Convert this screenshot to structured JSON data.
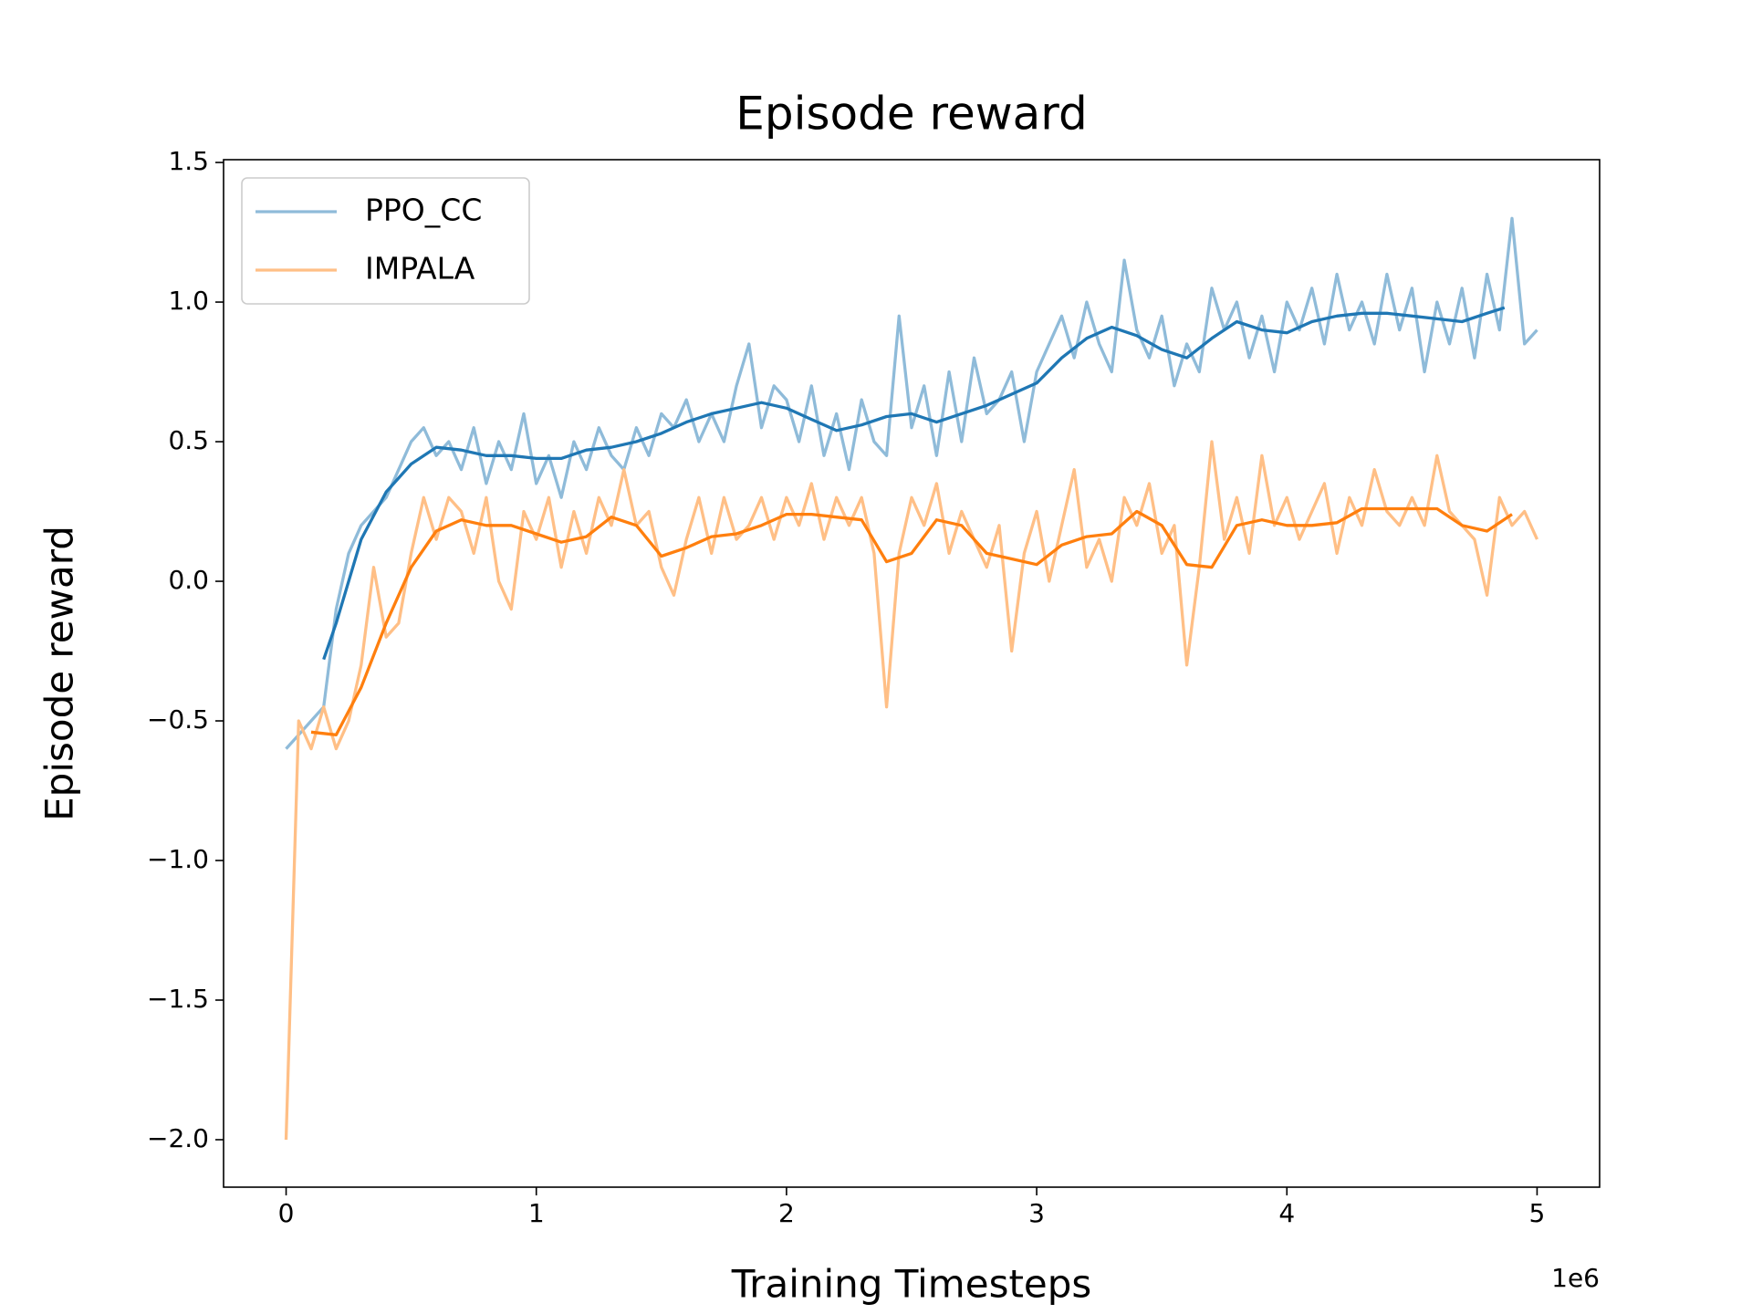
{
  "chart_data": {
    "type": "line",
    "title": "Episode reward",
    "xlabel": "Training Timesteps",
    "ylabel": "Episode reward",
    "x_offset_label": "1e6",
    "xlim": [
      -0.25,
      5.25
    ],
    "ylim": [
      -2.17,
      1.51
    ],
    "xticks": [
      0,
      1,
      2,
      3,
      4,
      5
    ],
    "yticks": [
      {
        "value": -2,
        "label": "−2.0"
      },
      {
        "value": -1.5,
        "label": "−1.5"
      },
      {
        "value": -1,
        "label": "−1.0"
      },
      {
        "value": -0.5,
        "label": "−0.5"
      },
      {
        "value": 0,
        "label": "0.0"
      },
      0.5,
      {
        "value": 1,
        "label": "1.0"
      },
      1.5
    ],
    "grid": false,
    "legend": "upper left",
    "series": [
      {
        "name": "PPO_CC",
        "color": "#8fbbd9",
        "x": [
          0,
          0.05,
          0.1,
          0.15,
          0.2,
          0.25,
          0.3,
          0.35,
          0.4,
          0.45,
          0.5,
          0.55,
          0.6,
          0.65,
          0.7,
          0.75,
          0.8,
          0.85,
          0.9,
          0.95,
          1,
          1.05,
          1.1,
          1.15,
          1.2,
          1.25,
          1.3,
          1.35,
          1.4,
          1.45,
          1.5,
          1.55,
          1.6,
          1.65,
          1.7,
          1.75,
          1.8,
          1.85,
          1.9,
          1.95,
          2,
          2.05,
          2.1,
          2.15,
          2.2,
          2.25,
          2.3,
          2.35,
          2.4,
          2.45,
          2.5,
          2.55,
          2.6,
          2.65,
          2.7,
          2.75,
          2.8,
          2.85,
          2.9,
          2.95,
          3,
          3.05,
          3.1,
          3.15,
          3.2,
          3.25,
          3.3,
          3.35,
          3.4,
          3.45,
          3.5,
          3.55,
          3.6,
          3.65,
          3.7,
          3.75,
          3.8,
          3.85,
          3.9,
          3.95,
          4,
          4.05,
          4.1,
          4.15,
          4.2,
          4.25,
          4.3,
          4.35,
          4.4,
          4.45,
          4.5,
          4.55,
          4.6,
          4.65,
          4.7,
          4.75,
          4.8,
          4.85,
          4.9,
          4.95,
          5
        ],
        "values": [
          -0.6,
          -0.55,
          -0.5,
          -0.45,
          -0.1,
          0.1,
          0.2,
          0.25,
          0.3,
          0.4,
          0.5,
          0.55,
          0.45,
          0.5,
          0.4,
          0.55,
          0.35,
          0.5,
          0.4,
          0.6,
          0.35,
          0.45,
          0.3,
          0.5,
          0.4,
          0.55,
          0.45,
          0.4,
          0.55,
          0.45,
          0.6,
          0.55,
          0.65,
          0.5,
          0.6,
          0.5,
          0.7,
          0.85,
          0.55,
          0.7,
          0.65,
          0.5,
          0.7,
          0.45,
          0.6,
          0.4,
          0.65,
          0.5,
          0.45,
          0.95,
          0.55,
          0.7,
          0.45,
          0.75,
          0.5,
          0.8,
          0.6,
          0.65,
          0.75,
          0.5,
          0.75,
          0.85,
          0.95,
          0.8,
          1.0,
          0.85,
          0.75,
          1.15,
          0.9,
          0.8,
          0.95,
          0.7,
          0.85,
          0.75,
          1.05,
          0.9,
          1.0,
          0.8,
          0.95,
          0.75,
          1.0,
          0.9,
          1.05,
          0.85,
          1.1,
          0.9,
          1.0,
          0.85,
          1.1,
          0.9,
          1.05,
          0.75,
          1.0,
          0.85,
          1.05,
          0.8,
          1.1,
          0.9,
          1.3,
          0.85,
          0.9
        ]
      },
      {
        "color": "#1f77b4",
        "x": [
          0.15,
          0.2,
          0.3,
          0.4,
          0.5,
          0.6,
          0.7,
          0.8,
          0.9,
          1,
          1.1,
          1.2,
          1.3,
          1.4,
          1.5,
          1.6,
          1.7,
          1.8,
          1.9,
          2,
          2.1,
          2.2,
          2.3,
          2.4,
          2.5,
          2.6,
          2.7,
          2.8,
          2.9,
          3,
          3.1,
          3.2,
          3.3,
          3.4,
          3.5,
          3.6,
          3.7,
          3.8,
          3.9,
          4,
          4.1,
          4.2,
          4.3,
          4.4,
          4.5,
          4.6,
          4.7,
          4.8,
          4.87
        ],
        "values": [
          -0.28,
          -0.15,
          0.15,
          0.32,
          0.42,
          0.48,
          0.47,
          0.45,
          0.45,
          0.44,
          0.44,
          0.47,
          0.48,
          0.5,
          0.53,
          0.57,
          0.6,
          0.62,
          0.64,
          0.62,
          0.58,
          0.54,
          0.56,
          0.59,
          0.6,
          0.57,
          0.6,
          0.63,
          0.67,
          0.71,
          0.8,
          0.87,
          0.91,
          0.88,
          0.83,
          0.8,
          0.87,
          0.93,
          0.9,
          0.89,
          0.93,
          0.95,
          0.96,
          0.96,
          0.95,
          0.94,
          0.93,
          0.96,
          0.98
        ]
      },
      {
        "name": "IMPALA",
        "color": "#ffbf86",
        "x": [
          0,
          0.05,
          0.1,
          0.15,
          0.2,
          0.25,
          0.3,
          0.35,
          0.4,
          0.45,
          0.5,
          0.55,
          0.6,
          0.65,
          0.7,
          0.75,
          0.8,
          0.85,
          0.9,
          0.95,
          1,
          1.05,
          1.1,
          1.15,
          1.2,
          1.25,
          1.3,
          1.35,
          1.4,
          1.45,
          1.5,
          1.55,
          1.6,
          1.65,
          1.7,
          1.75,
          1.8,
          1.85,
          1.9,
          1.95,
          2,
          2.05,
          2.1,
          2.15,
          2.2,
          2.25,
          2.3,
          2.35,
          2.4,
          2.45,
          2.5,
          2.55,
          2.6,
          2.65,
          2.7,
          2.75,
          2.8,
          2.85,
          2.9,
          2.95,
          3,
          3.05,
          3.1,
          3.15,
          3.2,
          3.25,
          3.3,
          3.35,
          3.4,
          3.45,
          3.5,
          3.55,
          3.6,
          3.65,
          3.7,
          3.75,
          3.8,
          3.85,
          3.9,
          3.95,
          4,
          4.05,
          4.1,
          4.15,
          4.2,
          4.25,
          4.3,
          4.35,
          4.4,
          4.45,
          4.5,
          4.55,
          4.6,
          4.65,
          4.7,
          4.75,
          4.8,
          4.85,
          4.9,
          4.95,
          5
        ],
        "values": [
          -2.0,
          -0.5,
          -0.6,
          -0.45,
          -0.6,
          -0.5,
          -0.3,
          0.05,
          -0.2,
          -0.15,
          0.1,
          0.3,
          0.15,
          0.3,
          0.25,
          0.1,
          0.3,
          0.0,
          -0.1,
          0.25,
          0.15,
          0.3,
          0.05,
          0.25,
          0.1,
          0.3,
          0.2,
          0.4,
          0.2,
          0.25,
          0.05,
          -0.05,
          0.15,
          0.3,
          0.1,
          0.3,
          0.15,
          0.2,
          0.3,
          0.15,
          0.3,
          0.2,
          0.35,
          0.15,
          0.3,
          0.2,
          0.3,
          0.1,
          -0.45,
          0.1,
          0.3,
          0.2,
          0.35,
          0.1,
          0.25,
          0.15,
          0.05,
          0.2,
          -0.25,
          0.1,
          0.25,
          0.0,
          0.2,
          0.4,
          0.05,
          0.15,
          0.0,
          0.3,
          0.2,
          0.35,
          0.1,
          0.2,
          -0.3,
          0.05,
          0.5,
          0.15,
          0.3,
          0.1,
          0.45,
          0.2,
          0.3,
          0.15,
          0.25,
          0.35,
          0.1,
          0.3,
          0.2,
          0.4,
          0.25,
          0.2,
          0.3,
          0.2,
          0.45,
          0.25,
          0.2,
          0.15,
          -0.05,
          0.3,
          0.2,
          0.25,
          0.15
        ]
      },
      {
        "color": "#ff7f0e",
        "x": [
          0.1,
          0.2,
          0.3,
          0.4,
          0.5,
          0.6,
          0.7,
          0.8,
          0.9,
          1,
          1.1,
          1.2,
          1.3,
          1.4,
          1.5,
          1.6,
          1.7,
          1.8,
          1.9,
          2,
          2.1,
          2.2,
          2.3,
          2.4,
          2.5,
          2.6,
          2.7,
          2.8,
          2.9,
          3,
          3.1,
          3.2,
          3.3,
          3.4,
          3.5,
          3.6,
          3.7,
          3.8,
          3.9,
          4,
          4.1,
          4.2,
          4.3,
          4.4,
          4.5,
          4.6,
          4.7,
          4.8,
          4.9
        ],
        "values": [
          -0.54,
          -0.55,
          -0.38,
          -0.15,
          0.05,
          0.18,
          0.22,
          0.2,
          0.2,
          0.17,
          0.14,
          0.16,
          0.23,
          0.2,
          0.09,
          0.12,
          0.16,
          0.17,
          0.2,
          0.24,
          0.24,
          0.23,
          0.22,
          0.07,
          0.1,
          0.22,
          0.2,
          0.1,
          0.08,
          0.06,
          0.13,
          0.16,
          0.17,
          0.25,
          0.2,
          0.06,
          0.05,
          0.2,
          0.22,
          0.2,
          0.2,
          0.21,
          0.26,
          0.26,
          0.26,
          0.26,
          0.2,
          0.18,
          0.24
        ]
      }
    ]
  }
}
